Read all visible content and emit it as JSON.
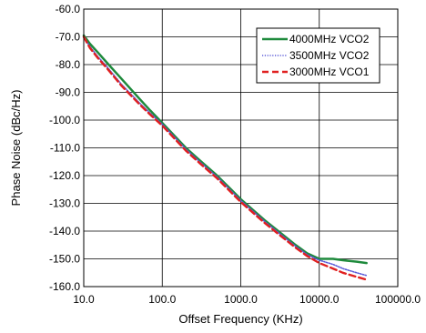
{
  "chart_data": {
    "type": "line",
    "xlabel": "Offset Frequency (KHz)",
    "ylabel": "Phase Noise (dBc/Hz)",
    "xscale": "log",
    "xlim": [
      10,
      100000
    ],
    "ylim": [
      -160,
      -60
    ],
    "x_ticks": [
      10,
      100,
      1000,
      10000,
      100000
    ],
    "x_tick_labels": [
      "10.0",
      "100.0",
      "1000.0",
      "10000.0",
      "100000.0"
    ],
    "y_ticks": [
      -60,
      -70,
      -80,
      -90,
      -100,
      -110,
      -120,
      -130,
      -140,
      -150,
      -160
    ],
    "y_tick_labels": [
      "-60.0",
      "-70.0",
      "-80.0",
      "-90.0",
      "-100.0",
      "-110.0",
      "-120.0",
      "-130.0",
      "-140.0",
      "-150.0",
      "-160.0"
    ],
    "grid": true,
    "legend_position": "top-right",
    "series": [
      {
        "name": "4000MHz VCO2",
        "color": "#1e8a3c",
        "style": "solid",
        "x": [
          10,
          12,
          15,
          20,
          30,
          50,
          70,
          100,
          200,
          300,
          500,
          1000,
          2000,
          3000,
          5000,
          7000,
          10000,
          15000,
          20000,
          30000,
          40000
        ],
        "y": [
          -69.5,
          -72.5,
          -75.5,
          -79.5,
          -85,
          -92,
          -96.5,
          -101,
          -110,
          -114.5,
          -120,
          -128.5,
          -136,
          -140,
          -145,
          -148,
          -150,
          -150,
          -150.5,
          -151,
          -151.5
        ]
      },
      {
        "name": "3500MHz VCO2",
        "color": "#5a5ad8",
        "style": "dotted",
        "x": [
          10,
          12,
          15,
          20,
          30,
          50,
          70,
          100,
          200,
          300,
          500,
          1000,
          2000,
          3000,
          5000,
          7000,
          10000,
          15000,
          20000,
          30000,
          40000
        ],
        "y": [
          -70,
          -73.5,
          -77,
          -81,
          -87,
          -93.5,
          -97.5,
          -101.5,
          -110.5,
          -115,
          -120.5,
          -129,
          -136.5,
          -140.5,
          -145.5,
          -148.5,
          -150.5,
          -152,
          -153.5,
          -155,
          -156
        ]
      },
      {
        "name": "3000MHz VCO1",
        "color": "#e02020",
        "style": "dashed",
        "x": [
          10,
          12,
          15,
          20,
          30,
          50,
          70,
          100,
          200,
          300,
          500,
          1000,
          2000,
          3000,
          5000,
          7000,
          10000,
          15000,
          20000,
          30000,
          40000
        ],
        "y": [
          -70,
          -74,
          -77.5,
          -81.5,
          -87.5,
          -94,
          -98,
          -102,
          -111,
          -115.5,
          -121,
          -129.5,
          -137,
          -141,
          -146,
          -149,
          -151.5,
          -153.5,
          -155,
          -156.5,
          -157.5
        ]
      }
    ]
  }
}
